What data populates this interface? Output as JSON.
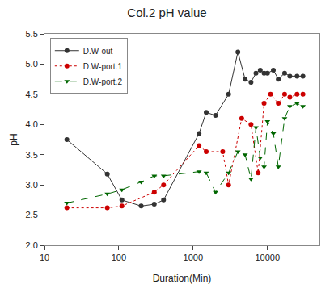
{
  "chart_data": {
    "type": "line",
    "title": "Col.2 pH value",
    "xlabel": "Duration(Min)",
    "ylabel": "pH",
    "log": "x",
    "grid": false,
    "legend": "upper left",
    "xlim": [
      10,
      50000
    ],
    "xticks": [
      10,
      100,
      1000,
      10000
    ],
    "ylim": [
      2.0,
      5.5
    ],
    "yticks": [
      {
        "value": 2,
        "label": "2.0"
      },
      2.5,
      {
        "value": 3,
        "label": "3.0"
      },
      3.5,
      {
        "value": 4,
        "label": "4.0"
      },
      4.5,
      {
        "value": 5,
        "label": "5.0"
      },
      5.5
    ],
    "series": [
      {
        "name": "D.W-out",
        "color": "#333333",
        "line_style": "solid",
        "marker": "circle",
        "x": [
          20,
          70,
          110,
          200,
          300,
          400,
          1200,
          1500,
          2000,
          3000,
          4000,
          5000,
          6000,
          7000,
          8000,
          9000,
          10000,
          12000,
          14000,
          17000,
          20000,
          25000,
          30000
        ],
        "values": [
          3.75,
          3.18,
          2.75,
          2.65,
          2.68,
          2.75,
          3.85,
          4.2,
          4.15,
          4.5,
          5.2,
          4.75,
          4.7,
          4.85,
          4.9,
          4.85,
          4.85,
          4.9,
          4.75,
          4.85,
          4.8,
          4.8,
          4.8
        ]
      },
      {
        "name": "D.W-port.1",
        "color": "#cc0000",
        "line_style": "dotted",
        "marker": "circle",
        "x": [
          20,
          70,
          110,
          300,
          400,
          1200,
          1500,
          2500,
          3000,
          4500,
          6000,
          7500,
          9000,
          11000,
          14000,
          17000,
          20000,
          25000,
          30000
        ],
        "values": [
          2.62,
          2.62,
          2.65,
          2.88,
          3.0,
          3.65,
          3.55,
          3.55,
          3.0,
          4.1,
          4.0,
          3.2,
          4.35,
          4.5,
          4.35,
          4.5,
          4.45,
          4.5,
          4.5
        ]
      },
      {
        "name": "D.W-port.2",
        "color": "#006600",
        "line_style": "dashed",
        "marker": "triangle-down",
        "x": [
          20,
          70,
          110,
          200,
          300,
          400,
          1200,
          1500,
          2000,
          3000,
          4000,
          5000,
          6000,
          7000,
          8000,
          9000,
          10000,
          12000,
          14000,
          17000,
          20000,
          25000,
          30000
        ],
        "values": [
          2.7,
          2.85,
          2.92,
          3.05,
          3.15,
          3.15,
          3.22,
          3.2,
          2.88,
          3.2,
          3.55,
          3.5,
          3.1,
          3.95,
          3.45,
          3.3,
          4.05,
          3.85,
          3.3,
          4.1,
          4.3,
          4.35,
          4.3
        ]
      }
    ]
  }
}
